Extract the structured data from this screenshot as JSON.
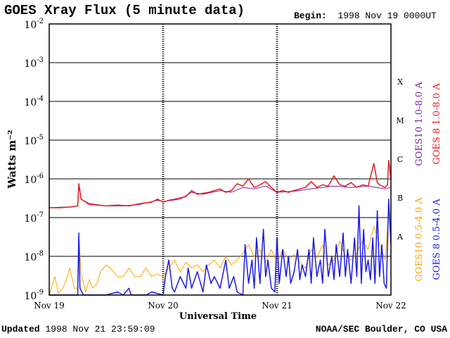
{
  "header": {
    "title": "GOES Xray Flux (5 minute data)",
    "begin_label": "Begin:",
    "begin_value": "1998 Nov 19 0000UT"
  },
  "footer": {
    "updated_label": "Updated",
    "updated_value": "1998 Nov 21 23:59:09",
    "credit": "NOAA/SEC Boulder, CO USA"
  },
  "colors": {
    "goes10_long": "#7b1fa2",
    "goes8_long": "#e41a1c",
    "goes10_short": "#ffa500",
    "goes8_short": "#1a1ae6"
  },
  "chart_data": {
    "type": "line",
    "title": "GOES Xray Flux (5 minute data)",
    "xlabel": "Universal Time",
    "ylabel": "Watts m⁻²",
    "yscale": "log",
    "ylim": [
      1e-09,
      0.01
    ],
    "y_ticks": [
      {
        "value": 1e-09,
        "label": "10",
        "exp": "-9"
      },
      {
        "value": 1e-08,
        "label": "10",
        "exp": "-8"
      },
      {
        "value": 1e-07,
        "label": "10",
        "exp": "-7"
      },
      {
        "value": 1e-06,
        "label": "10",
        "exp": "-6"
      },
      {
        "value": 1e-05,
        "label": "10",
        "exp": "-5"
      },
      {
        "value": 0.0001,
        "label": "10",
        "exp": "-4"
      },
      {
        "value": 0.001,
        "label": "10",
        "exp": "-3"
      },
      {
        "value": 0.01,
        "label": "10",
        "exp": "-2"
      }
    ],
    "x_tick_labels": [
      "Nov 19",
      "Nov 20",
      "Nov 21",
      "Nov 22"
    ],
    "xlim_days": [
      0,
      3
    ],
    "flare_classes": [
      {
        "label": "X",
        "value": 0.00032
      },
      {
        "label": "M",
        "value": 3.2e-05
      },
      {
        "label": "C",
        "value": 3.2e-06
      },
      {
        "label": "B",
        "value": 3.2e-07
      },
      {
        "label": "A",
        "value": 3.2e-08
      }
    ],
    "grid": true,
    "legend": "right",
    "series": [
      {
        "name": "GOES10 1.0-8.0 A",
        "color": "#7b1fa2",
        "width": 1,
        "points": [
          [
            0,
            1.8e-07
          ],
          [
            0.1,
            1.85e-07
          ],
          [
            0.2,
            1.9e-07
          ],
          [
            0.25,
            2e-07
          ],
          [
            0.26,
            7e-07
          ],
          [
            0.28,
            3e-07
          ],
          [
            0.35,
            2.3e-07
          ],
          [
            0.5,
            2e-07
          ],
          [
            0.65,
            2e-07
          ],
          [
            0.8,
            2.2e-07
          ],
          [
            0.95,
            2.8e-07
          ],
          [
            1.0,
            2.6e-07
          ],
          [
            1.15,
            3e-07
          ],
          [
            1.25,
            4.5e-07
          ],
          [
            1.35,
            4e-07
          ],
          [
            1.5,
            5e-07
          ],
          [
            1.6,
            4.5e-07
          ],
          [
            1.7,
            6e-07
          ],
          [
            1.8,
            5.5e-07
          ],
          [
            1.9,
            6.5e-07
          ],
          [
            2.0,
            4.5e-07
          ],
          [
            2.15,
            4.8e-07
          ],
          [
            2.3,
            5.5e-07
          ],
          [
            2.5,
            6.5e-07
          ],
          [
            2.65,
            6e-07
          ],
          [
            2.8,
            6.5e-07
          ],
          [
            2.95,
            5.5e-07
          ],
          [
            3.0,
            6e-07
          ]
        ]
      },
      {
        "name": "GOES 8 1.0-8.0 A",
        "color": "#e41a1c",
        "width": 1.5,
        "points": [
          [
            0,
            1.8e-07
          ],
          [
            0.1,
            1.8e-07
          ],
          [
            0.2,
            1.9e-07
          ],
          [
            0.25,
            2e-07
          ],
          [
            0.26,
            7.5e-07
          ],
          [
            0.28,
            3e-07
          ],
          [
            0.35,
            2.2e-07
          ],
          [
            0.5,
            2e-07
          ],
          [
            0.6,
            2.1e-07
          ],
          [
            0.7,
            2e-07
          ],
          [
            0.8,
            2.3e-07
          ],
          [
            0.9,
            2.5e-07
          ],
          [
            0.95,
            3e-07
          ],
          [
            1.0,
            2.5e-07
          ],
          [
            1.05,
            2.8e-07
          ],
          [
            1.1,
            3e-07
          ],
          [
            1.2,
            3.5e-07
          ],
          [
            1.25,
            5e-07
          ],
          [
            1.3,
            4e-07
          ],
          [
            1.4,
            4.5e-07
          ],
          [
            1.5,
            5.5e-07
          ],
          [
            1.55,
            4.5e-07
          ],
          [
            1.6,
            5e-07
          ],
          [
            1.65,
            7.5e-07
          ],
          [
            1.7,
            6.5e-07
          ],
          [
            1.75,
            1e-06
          ],
          [
            1.8,
            6e-07
          ],
          [
            1.85,
            7e-07
          ],
          [
            1.9,
            8.5e-07
          ],
          [
            1.95,
            6e-07
          ],
          [
            2.0,
            4.5e-07
          ],
          [
            2.05,
            5e-07
          ],
          [
            2.1,
            4.5e-07
          ],
          [
            2.15,
            5e-07
          ],
          [
            2.2,
            5.5e-07
          ],
          [
            2.25,
            6e-07
          ],
          [
            2.3,
            8.5e-07
          ],
          [
            2.35,
            6e-07
          ],
          [
            2.4,
            7e-07
          ],
          [
            2.45,
            6.5e-07
          ],
          [
            2.5,
            1.2e-06
          ],
          [
            2.55,
            7e-07
          ],
          [
            2.6,
            6.5e-07
          ],
          [
            2.65,
            8e-07
          ],
          [
            2.7,
            6e-07
          ],
          [
            2.75,
            7e-07
          ],
          [
            2.8,
            6.5e-07
          ],
          [
            2.85,
            2.5e-06
          ],
          [
            2.88,
            8e-07
          ],
          [
            2.9,
            7e-07
          ],
          [
            2.95,
            6e-07
          ],
          [
            2.97,
            7e-07
          ],
          [
            2.98,
            3e-06
          ],
          [
            3.0,
            1e-06
          ]
        ]
      },
      {
        "name": "GOES10 0.5-4.0 A",
        "color": "#ffa500",
        "width": 1,
        "points": [
          [
            0,
            1e-09
          ],
          [
            0.05,
            3e-09
          ],
          [
            0.08,
            1.1e-09
          ],
          [
            0.12,
            1.5e-09
          ],
          [
            0.15,
            2.5e-09
          ],
          [
            0.18,
            5e-09
          ],
          [
            0.22,
            1.5e-09
          ],
          [
            0.25,
            1.5e-09
          ],
          [
            0.26,
            3.5e-08
          ],
          [
            0.28,
            3.5e-09
          ],
          [
            0.32,
            1.2e-09
          ],
          [
            0.35,
            2.5e-09
          ],
          [
            0.38,
            1.5e-09
          ],
          [
            0.42,
            2e-09
          ],
          [
            0.45,
            4e-09
          ],
          [
            0.5,
            6e-09
          ],
          [
            0.55,
            4.5e-09
          ],
          [
            0.6,
            3e-09
          ],
          [
            0.65,
            3e-09
          ],
          [
            0.7,
            5e-09
          ],
          [
            0.75,
            3e-09
          ],
          [
            0.8,
            3e-09
          ],
          [
            0.85,
            5e-09
          ],
          [
            0.9,
            3e-09
          ],
          [
            0.95,
            3.5e-09
          ],
          [
            1.0,
            3e-09
          ],
          [
            1.05,
            5e-09
          ],
          [
            1.1,
            8e-09
          ],
          [
            1.15,
            4e-09
          ],
          [
            1.2,
            7e-09
          ],
          [
            1.25,
            5e-09
          ],
          [
            1.3,
            6e-09
          ],
          [
            1.35,
            4e-09
          ],
          [
            1.4,
            6e-09
          ],
          [
            1.45,
            8e-09
          ],
          [
            1.5,
            5e-09
          ],
          [
            1.55,
            1e-08
          ],
          [
            1.6,
            6e-09
          ],
          [
            1.65,
            8e-09
          ],
          [
            1.7,
            1.2e-08
          ],
          [
            1.75,
            2e-08
          ],
          [
            1.8,
            1e-08
          ],
          [
            1.85,
            1.5e-08
          ],
          [
            1.9,
            7e-09
          ],
          [
            1.95,
            1.5e-08
          ],
          [
            2.0,
            7e-09
          ],
          [
            2.05,
            1.5e-08
          ],
          [
            2.1,
            8e-09
          ],
          [
            2.15,
            1.1e-08
          ],
          [
            2.2,
            7e-09
          ],
          [
            2.25,
            5e-09
          ],
          [
            2.3,
            1.5e-08
          ],
          [
            2.35,
            9e-09
          ],
          [
            2.4,
            2e-08
          ],
          [
            2.45,
            6e-09
          ],
          [
            2.5,
            8e-09
          ],
          [
            2.55,
            2.5e-08
          ],
          [
            2.6,
            1e-08
          ],
          [
            2.65,
            8e-09
          ],
          [
            2.7,
            1.2e-08
          ],
          [
            2.75,
            2.5e-08
          ],
          [
            2.8,
            1.5e-08
          ],
          [
            2.85,
            6e-08
          ],
          [
            2.9,
            2e-08
          ],
          [
            2.95,
            8e-09
          ],
          [
            2.98,
            1.5e-07
          ],
          [
            3.0,
            3e-08
          ]
        ]
      },
      {
        "name": "GOES 8 0.5-4.0 A",
        "color": "#1a1ae6",
        "width": 1.5,
        "points": [
          [
            0,
            1e-09
          ],
          [
            0.1,
            1e-09
          ],
          [
            0.2,
            1e-09
          ],
          [
            0.25,
            1e-09
          ],
          [
            0.26,
            4e-08
          ],
          [
            0.27,
            1.5e-09
          ],
          [
            0.3,
            1e-09
          ],
          [
            0.4,
            1e-09
          ],
          [
            0.5,
            1e-09
          ],
          [
            0.6,
            1.2e-09
          ],
          [
            0.65,
            1e-09
          ],
          [
            0.7,
            1.5e-09
          ],
          [
            0.72,
            1e-09
          ],
          [
            0.8,
            1e-09
          ],
          [
            0.85,
            1e-09
          ],
          [
            0.9,
            1.2e-09
          ],
          [
            1.0,
            1e-09
          ],
          [
            1.02,
            3e-09
          ],
          [
            1.05,
            8e-09
          ],
          [
            1.08,
            1.5e-09
          ],
          [
            1.1,
            1.2e-09
          ],
          [
            1.15,
            3e-09
          ],
          [
            1.2,
            1.5e-09
          ],
          [
            1.22,
            5e-09
          ],
          [
            1.25,
            1.5e-09
          ],
          [
            1.3,
            4e-09
          ],
          [
            1.35,
            1.2e-09
          ],
          [
            1.38,
            6e-09
          ],
          [
            1.42,
            2e-09
          ],
          [
            1.45,
            3e-09
          ],
          [
            1.5,
            1.5e-09
          ],
          [
            1.55,
            8e-09
          ],
          [
            1.58,
            1.5e-09
          ],
          [
            1.62,
            3e-09
          ],
          [
            1.65,
            1.2e-09
          ],
          [
            1.7,
            1e-09
          ],
          [
            1.72,
            2e-08
          ],
          [
            1.75,
            2e-09
          ],
          [
            1.78,
            8e-09
          ],
          [
            1.8,
            1.5e-09
          ],
          [
            1.82,
            3e-08
          ],
          [
            1.85,
            2e-09
          ],
          [
            1.88,
            5e-08
          ],
          [
            1.9,
            3e-09
          ],
          [
            1.92,
            8e-09
          ],
          [
            1.95,
            1.5e-09
          ],
          [
            1.98,
            1.2e-09
          ],
          [
            2.0,
            3e-08
          ],
          [
            2.02,
            2e-09
          ],
          [
            2.05,
            1.5e-08
          ],
          [
            2.08,
            3e-09
          ],
          [
            2.1,
            1e-08
          ],
          [
            2.12,
            2e-09
          ],
          [
            2.15,
            4e-09
          ],
          [
            2.18,
            1.5e-08
          ],
          [
            2.2,
            2.5e-09
          ],
          [
            2.22,
            6e-09
          ],
          [
            2.25,
            3e-09
          ],
          [
            2.28,
            1.5e-08
          ],
          [
            2.3,
            2e-09
          ],
          [
            2.32,
            3e-08
          ],
          [
            2.35,
            3e-09
          ],
          [
            2.38,
            8e-09
          ],
          [
            2.4,
            2e-09
          ],
          [
            2.42,
            5e-08
          ],
          [
            2.45,
            3e-09
          ],
          [
            2.48,
            1e-08
          ],
          [
            2.5,
            2.5e-09
          ],
          [
            2.52,
            2e-08
          ],
          [
            2.55,
            3e-09
          ],
          [
            2.58,
            4e-08
          ],
          [
            2.6,
            3e-09
          ],
          [
            2.62,
            1.5e-08
          ],
          [
            2.65,
            2e-09
          ],
          [
            2.68,
            3e-08
          ],
          [
            2.7,
            3e-09
          ],
          [
            2.72,
            2e-07
          ],
          [
            2.74,
            2e-09
          ],
          [
            2.76,
            5e-08
          ],
          [
            2.78,
            4e-09
          ],
          [
            2.8,
            8e-09
          ],
          [
            2.82,
            2.5e-09
          ],
          [
            2.84,
            3e-08
          ],
          [
            2.86,
            2e-09
          ],
          [
            2.88,
            1.5e-07
          ],
          [
            2.9,
            3e-09
          ],
          [
            2.92,
            2e-08
          ],
          [
            2.94,
            2e-09
          ],
          [
            2.96,
            1.5e-09
          ],
          [
            2.98,
            3e-07
          ],
          [
            3.0,
            2e-08
          ]
        ]
      }
    ]
  }
}
